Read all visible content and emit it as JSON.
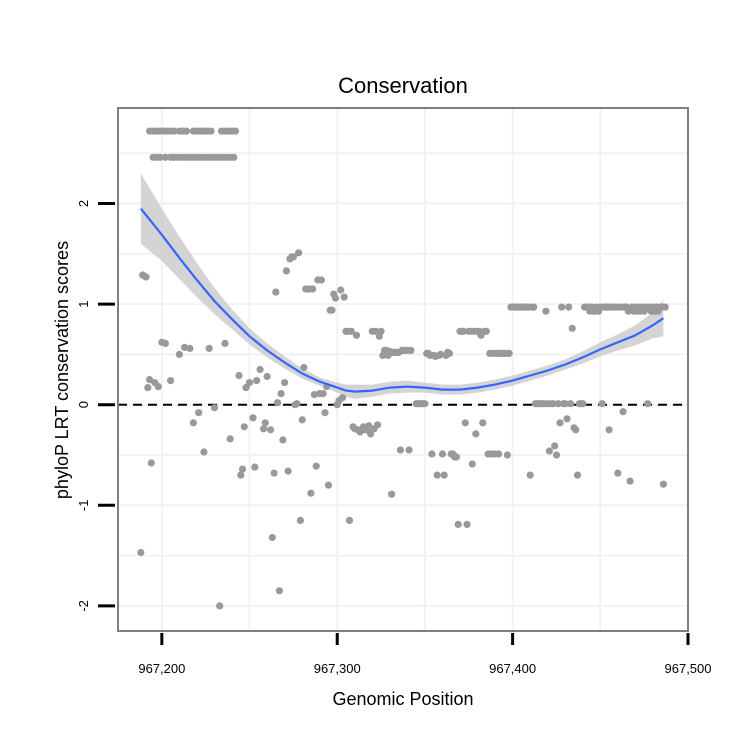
{
  "chart_data": {
    "type": "scatter",
    "title": "Conservation",
    "xlabel": "Genomic Position",
    "ylabel": "phyloP LRT conservation scores",
    "xlim": [
      967175,
      967500
    ],
    "ylim": [
      -2.25,
      2.95
    ],
    "x_ticks": [
      967200,
      967300,
      967400,
      967500
    ],
    "x_tick_labels": [
      "967,200",
      "967,300",
      "967,400",
      "967,500"
    ],
    "y_ticks": [
      -2,
      -1,
      0,
      1,
      2
    ],
    "y_tick_labels": [
      "-2",
      "-1",
      "0",
      "1",
      "2"
    ],
    "reference_line": 0,
    "colors": {
      "points": "#999999",
      "smooth": "#3366ff",
      "band": "#cccccc",
      "frame": "#7f7f7f",
      "grid": "#f2f2f2"
    },
    "points": [
      [
        967193,
        2.72
      ],
      [
        967195,
        2.72
      ],
      [
        967197,
        2.72
      ],
      [
        967199,
        2.72
      ],
      [
        967201,
        2.72
      ],
      [
        967203,
        2.72
      ],
      [
        967205,
        2.72
      ],
      [
        967207,
        2.72
      ],
      [
        967210,
        2.72
      ],
      [
        967212,
        2.72
      ],
      [
        967214,
        2.72
      ],
      [
        967218,
        2.72
      ],
      [
        967220,
        2.72
      ],
      [
        967222,
        2.72
      ],
      [
        967224,
        2.72
      ],
      [
        967226,
        2.72
      ],
      [
        967228,
        2.72
      ],
      [
        967234,
        2.72
      ],
      [
        967236,
        2.72
      ],
      [
        967238,
        2.72
      ],
      [
        967240,
        2.72
      ],
      [
        967242,
        2.72
      ],
      [
        967195,
        2.46
      ],
      [
        967197,
        2.46
      ],
      [
        967199,
        2.46
      ],
      [
        967202,
        2.46
      ],
      [
        967205,
        2.46
      ],
      [
        967207,
        2.46
      ],
      [
        967209,
        2.46
      ],
      [
        967211,
        2.46
      ],
      [
        967213,
        2.46
      ],
      [
        967215,
        2.46
      ],
      [
        967217,
        2.46
      ],
      [
        967219,
        2.46
      ],
      [
        967221,
        2.46
      ],
      [
        967223,
        2.46
      ],
      [
        967225,
        2.46
      ],
      [
        967227,
        2.46
      ],
      [
        967229,
        2.46
      ],
      [
        967231,
        2.46
      ],
      [
        967233,
        2.46
      ],
      [
        967235,
        2.46
      ],
      [
        967237,
        2.46
      ],
      [
        967239,
        2.46
      ],
      [
        967241,
        2.46
      ],
      [
        967189,
        1.29
      ],
      [
        967190,
        1.28
      ],
      [
        967191,
        1.27
      ],
      [
        967192,
        0.17
      ],
      [
        967193,
        0.25
      ],
      [
        967196,
        0.22
      ],
      [
        967200,
        0.62
      ],
      [
        967202,
        0.61
      ],
      [
        967205,
        0.24
      ],
      [
        967210,
        0.5
      ],
      [
        967213,
        0.57
      ],
      [
        967216,
        0.56
      ],
      [
        967218,
        -0.18
      ],
      [
        967221,
        -0.08
      ],
      [
        967224,
        -0.47
      ],
      [
        967227,
        0.56
      ],
      [
        967230,
        -0.03
      ],
      [
        967233,
        -2.0
      ],
      [
        967236,
        0.61
      ],
      [
        967239,
        -0.34
      ],
      [
        967244,
        0.29
      ],
      [
        967245,
        -0.7
      ],
      [
        967246,
        -0.64
      ],
      [
        967247,
        -0.22
      ],
      [
        967248,
        0.17
      ],
      [
        967250,
        0.22
      ],
      [
        967252,
        -0.13
      ],
      [
        967253,
        -0.62
      ],
      [
        967254,
        0.24
      ],
      [
        967256,
        0.35
      ],
      [
        967258,
        -0.24
      ],
      [
        967259,
        -0.18
      ],
      [
        967260,
        0.28
      ],
      [
        967262,
        -0.25
      ],
      [
        967263,
        -1.32
      ],
      [
        967264,
        -0.68
      ],
      [
        967265,
        1.12
      ],
      [
        967266,
        0.02
      ],
      [
        967267,
        -1.85
      ],
      [
        967268,
        0.11
      ],
      [
        967269,
        -0.35
      ],
      [
        967270,
        0.22
      ],
      [
        967271,
        1.33
      ],
      [
        967272,
        -0.66
      ],
      [
        967273,
        1.45
      ],
      [
        967274,
        1.47
      ],
      [
        967275,
        1.47
      ],
      [
        967276,
        0.0
      ],
      [
        967277,
        0.01
      ],
      [
        967278,
        1.51
      ],
      [
        967279,
        -1.15
      ],
      [
        967280,
        -0.15
      ],
      [
        967281,
        0.37
      ],
      [
        967282,
        1.15
      ],
      [
        967283,
        1.15
      ],
      [
        967284,
        1.15
      ],
      [
        967285,
        -0.88
      ],
      [
        967286,
        1.15
      ],
      [
        967287,
        0.1
      ],
      [
        967288,
        -0.61
      ],
      [
        967289,
        1.24
      ],
      [
        967290,
        0.11
      ],
      [
        967291,
        1.24
      ],
      [
        967292,
        0.11
      ],
      [
        967293,
        -0.08
      ],
      [
        967294,
        0.18
      ],
      [
        967295,
        -0.8
      ],
      [
        967296,
        0.94
      ],
      [
        967297,
        0.94
      ],
      [
        967298,
        1.1
      ],
      [
        967299,
        1.06
      ],
      [
        967300,
        0.0
      ],
      [
        967301,
        0.04
      ],
      [
        967302,
        1.14
      ],
      [
        967303,
        0.07
      ],
      [
        967304,
        1.07
      ],
      [
        967305,
        0.73
      ],
      [
        967306,
        0.73
      ],
      [
        967307,
        -1.15
      ],
      [
        967308,
        0.73
      ],
      [
        967309,
        -0.22
      ],
      [
        967310,
        -0.24
      ],
      [
        967311,
        0.69
      ],
      [
        967312,
        -0.25
      ],
      [
        967313,
        -0.27
      ],
      [
        967314,
        -0.25
      ],
      [
        967315,
        -0.22
      ],
      [
        967316,
        -0.25
      ],
      [
        967317,
        -0.25
      ],
      [
        967318,
        -0.21
      ],
      [
        967319,
        -0.29
      ],
      [
        967320,
        0.73
      ],
      [
        967321,
        -0.24
      ],
      [
        967322,
        0.73
      ],
      [
        967323,
        -0.2
      ],
      [
        967324,
        0.68
      ],
      [
        967325,
        0.73
      ],
      [
        967326,
        0.49
      ],
      [
        967327,
        0.54
      ],
      [
        967328,
        0.54
      ],
      [
        967329,
        0.49
      ],
      [
        967330,
        0.53
      ],
      [
        967331,
        -0.89
      ],
      [
        967332,
        0.52
      ],
      [
        967333,
        0.52
      ],
      [
        967334,
        0.52
      ],
      [
        967335,
        0.52
      ],
      [
        967336,
        -0.45
      ],
      [
        967337,
        0.54
      ],
      [
        967338,
        0.54
      ],
      [
        967339,
        0.54
      ],
      [
        967340,
        0.54
      ],
      [
        967341,
        -0.45
      ],
      [
        967342,
        0.54
      ],
      [
        967345,
        0.01
      ],
      [
        967346,
        0.01
      ],
      [
        967347,
        0.01
      ],
      [
        967348,
        0.01
      ],
      [
        967349,
        0.01
      ],
      [
        967350,
        0.01
      ],
      [
        967351,
        0.51
      ],
      [
        967352,
        0.51
      ],
      [
        967353,
        0.49
      ],
      [
        967354,
        -0.49
      ],
      [
        967355,
        0.49
      ],
      [
        967356,
        0.48
      ],
      [
        967357,
        -0.7
      ],
      [
        967358,
        0.49
      ],
      [
        967359,
        0.5
      ],
      [
        967360,
        -0.49
      ],
      [
        967361,
        -0.7
      ],
      [
        967362,
        0.49
      ],
      [
        967363,
        0.52
      ],
      [
        967364,
        0.51
      ],
      [
        967365,
        -0.49
      ],
      [
        967366,
        -0.49
      ],
      [
        967367,
        -0.52
      ],
      [
        967368,
        -0.52
      ],
      [
        967369,
        -1.19
      ],
      [
        967370,
        0.73
      ],
      [
        967371,
        0.73
      ],
      [
        967372,
        0.73
      ],
      [
        967373,
        -0.18
      ],
      [
        967374,
        -1.19
      ],
      [
        967375,
        0.73
      ],
      [
        967376,
        0.73
      ],
      [
        967377,
        -0.59
      ],
      [
        967378,
        0.73
      ],
      [
        967379,
        -0.29
      ],
      [
        967380,
        0.73
      ],
      [
        967381,
        0.73
      ],
      [
        967382,
        0.69
      ],
      [
        967383,
        -0.18
      ],
      [
        967384,
        0.73
      ],
      [
        967385,
        0.73
      ],
      [
        967386,
        -0.49
      ],
      [
        967387,
        0.51
      ],
      [
        967388,
        -0.49
      ],
      [
        967389,
        0.51
      ],
      [
        967390,
        -0.49
      ],
      [
        967391,
        0.51
      ],
      [
        967392,
        -0.49
      ],
      [
        967393,
        0.51
      ],
      [
        967394,
        0.51
      ],
      [
        967395,
        0.51
      ],
      [
        967396,
        0.51
      ],
      [
        967397,
        -0.5
      ],
      [
        967398,
        0.51
      ],
      [
        967399,
        0.97
      ],
      [
        967400,
        0.97
      ],
      [
        967401,
        0.97
      ],
      [
        967402,
        0.97
      ],
      [
        967403,
        0.97
      ],
      [
        967404,
        0.97
      ],
      [
        967405,
        0.97
      ],
      [
        967406,
        0.97
      ],
      [
        967407,
        0.97
      ],
      [
        967408,
        0.97
      ],
      [
        967409,
        0.97
      ],
      [
        967410,
        -0.7
      ],
      [
        967411,
        0.97
      ],
      [
        967412,
        0.97
      ],
      [
        967413,
        0.01
      ],
      [
        967414,
        0.01
      ],
      [
        967415,
        0.01
      ],
      [
        967416,
        0.01
      ],
      [
        967417,
        0.01
      ],
      [
        967418,
        0.01
      ],
      [
        967419,
        0.93
      ],
      [
        967420,
        0.01
      ],
      [
        967421,
        -0.46
      ],
      [
        967422,
        0.01
      ],
      [
        967423,
        0.01
      ],
      [
        967424,
        -0.41
      ],
      [
        967425,
        -0.5
      ],
      [
        967426,
        0.01
      ],
      [
        967427,
        -0.18
      ],
      [
        967428,
        0.97
      ],
      [
        967429,
        0.01
      ],
      [
        967430,
        0.01
      ],
      [
        967431,
        -0.14
      ],
      [
        967432,
        0.97
      ],
      [
        967433,
        0.01
      ],
      [
        967434,
        0.76
      ],
      [
        967435,
        -0.23
      ],
      [
        967436,
        -0.25
      ],
      [
        967437,
        -0.7
      ],
      [
        967438,
        0.01
      ],
      [
        967439,
        0.01
      ],
      [
        967440,
        0.01
      ],
      [
        967441,
        0.97
      ],
      [
        967442,
        0.97
      ],
      [
        967443,
        0.97
      ],
      [
        967444,
        0.93
      ],
      [
        967445,
        0.97
      ],
      [
        967446,
        0.93
      ],
      [
        967447,
        0.93
      ],
      [
        967448,
        0.97
      ],
      [
        967449,
        0.93
      ],
      [
        967450,
        0.97
      ],
      [
        967451,
        0.01
      ],
      [
        967452,
        0.97
      ],
      [
        967453,
        0.97
      ],
      [
        967454,
        0.97
      ],
      [
        967455,
        -0.25
      ],
      [
        967456,
        0.97
      ],
      [
        967457,
        0.97
      ],
      [
        967458,
        0.97
      ],
      [
        967459,
        0.97
      ],
      [
        967460,
        -0.68
      ],
      [
        967461,
        0.97
      ],
      [
        967462,
        0.97
      ],
      [
        967463,
        -0.07
      ],
      [
        967464,
        0.97
      ],
      [
        967465,
        0.97
      ],
      [
        967466,
        0.93
      ],
      [
        967467,
        -0.76
      ],
      [
        967468,
        0.97
      ],
      [
        967469,
        0.93
      ],
      [
        967470,
        0.97
      ],
      [
        967471,
        0.93
      ],
      [
        967472,
        0.97
      ],
      [
        967473,
        0.93
      ],
      [
        967474,
        0.97
      ],
      [
        967475,
        0.93
      ],
      [
        967476,
        0.97
      ],
      [
        967477,
        0.01
      ],
      [
        967478,
        0.97
      ],
      [
        967479,
        0.93
      ],
      [
        967480,
        0.97
      ],
      [
        967481,
        0.93
      ],
      [
        967482,
        0.97
      ],
      [
        967483,
        0.93
      ],
      [
        967484,
        0.97
      ],
      [
        967485,
        0.97
      ],
      [
        967486,
        -0.79
      ],
      [
        967487,
        0.97
      ],
      [
        967188,
        -1.47
      ],
      [
        967194,
        -0.58
      ],
      [
        967198,
        0.18
      ]
    ],
    "smooth": {
      "x": [
        967188,
        967200,
        967210,
        967220,
        967230,
        967240,
        967250,
        967260,
        967270,
        967280,
        967290,
        967300,
        967305,
        967310,
        967320,
        967330,
        967340,
        967350,
        967360,
        967370,
        967380,
        967390,
        967400,
        967410,
        967420,
        967430,
        967440,
        967450,
        967460,
        967470,
        967480,
        967486
      ],
      "y": [
        1.95,
        1.69,
        1.46,
        1.24,
        1.03,
        0.85,
        0.68,
        0.54,
        0.42,
        0.31,
        0.23,
        0.17,
        0.14,
        0.13,
        0.14,
        0.17,
        0.18,
        0.17,
        0.15,
        0.15,
        0.17,
        0.2,
        0.24,
        0.29,
        0.34,
        0.4,
        0.47,
        0.55,
        0.62,
        0.69,
        0.79,
        0.86
      ],
      "lower": [
        1.6,
        1.43,
        1.25,
        1.07,
        0.9,
        0.75,
        0.6,
        0.47,
        0.36,
        0.26,
        0.19,
        0.12,
        0.08,
        0.06,
        0.08,
        0.11,
        0.12,
        0.12,
        0.1,
        0.1,
        0.12,
        0.15,
        0.19,
        0.24,
        0.29,
        0.35,
        0.41,
        0.48,
        0.54,
        0.59,
        0.66,
        0.68
      ],
      "upper": [
        2.3,
        1.95,
        1.67,
        1.41,
        1.16,
        0.95,
        0.76,
        0.61,
        0.48,
        0.36,
        0.27,
        0.22,
        0.2,
        0.2,
        0.2,
        0.23,
        0.24,
        0.22,
        0.2,
        0.2,
        0.22,
        0.25,
        0.29,
        0.34,
        0.39,
        0.45,
        0.53,
        0.62,
        0.7,
        0.79,
        0.92,
        1.04
      ]
    }
  }
}
